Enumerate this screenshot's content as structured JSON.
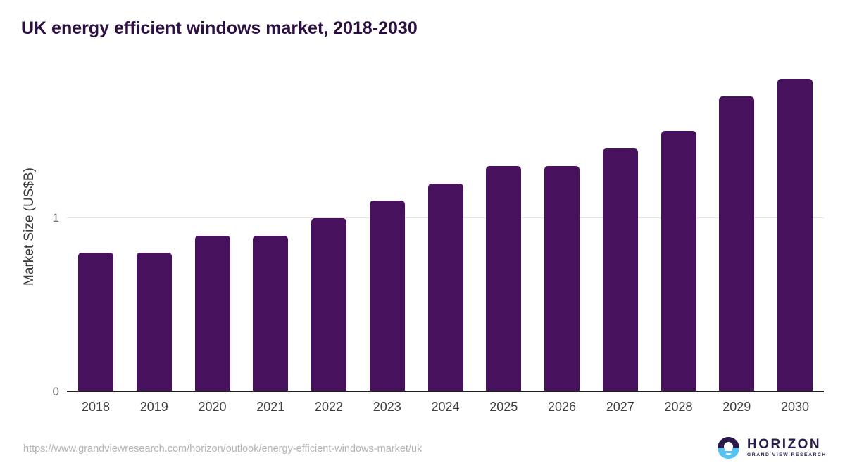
{
  "header": {
    "title": "UK energy efficient windows market, 2018-2030",
    "title_color": "#2d1042"
  },
  "chart_data": {
    "type": "bar",
    "title": "UK energy efficient windows market, 2018-2030",
    "categories": [
      "2018",
      "2019",
      "2020",
      "2021",
      "2022",
      "2023",
      "2024",
      "2025",
      "2026",
      "2027",
      "2028",
      "2029",
      "2030"
    ],
    "values": [
      0.8,
      0.8,
      0.9,
      0.9,
      1.0,
      1.1,
      1.2,
      1.3,
      1.3,
      1.4,
      1.5,
      1.7,
      1.8
    ],
    "xlabel": "",
    "ylabel": "Market Size (US$B)",
    "yticks": [
      "0",
      "1"
    ],
    "ylim": [
      0,
      1.87
    ],
    "grid": "single horizontal gridline at y=1",
    "legend": "none",
    "bar_color": "#48115e",
    "axis_line_color": "#1f1f1f",
    "gridline_color": "#e4e4e4",
    "tick_label_color": "#3d3d3d"
  },
  "footer": {
    "source_url": "https://www.grandviewresearch.com/horizon/outlook/energy-efficient-windows-market/uk",
    "logo": {
      "name": "HORIZON",
      "subtitle": "GRAND VIEW RESEARCH",
      "text_color": "#2a1a4a",
      "mark_top_color": "#2a1a4a",
      "mark_bottom_color": "#57c1f0"
    }
  }
}
